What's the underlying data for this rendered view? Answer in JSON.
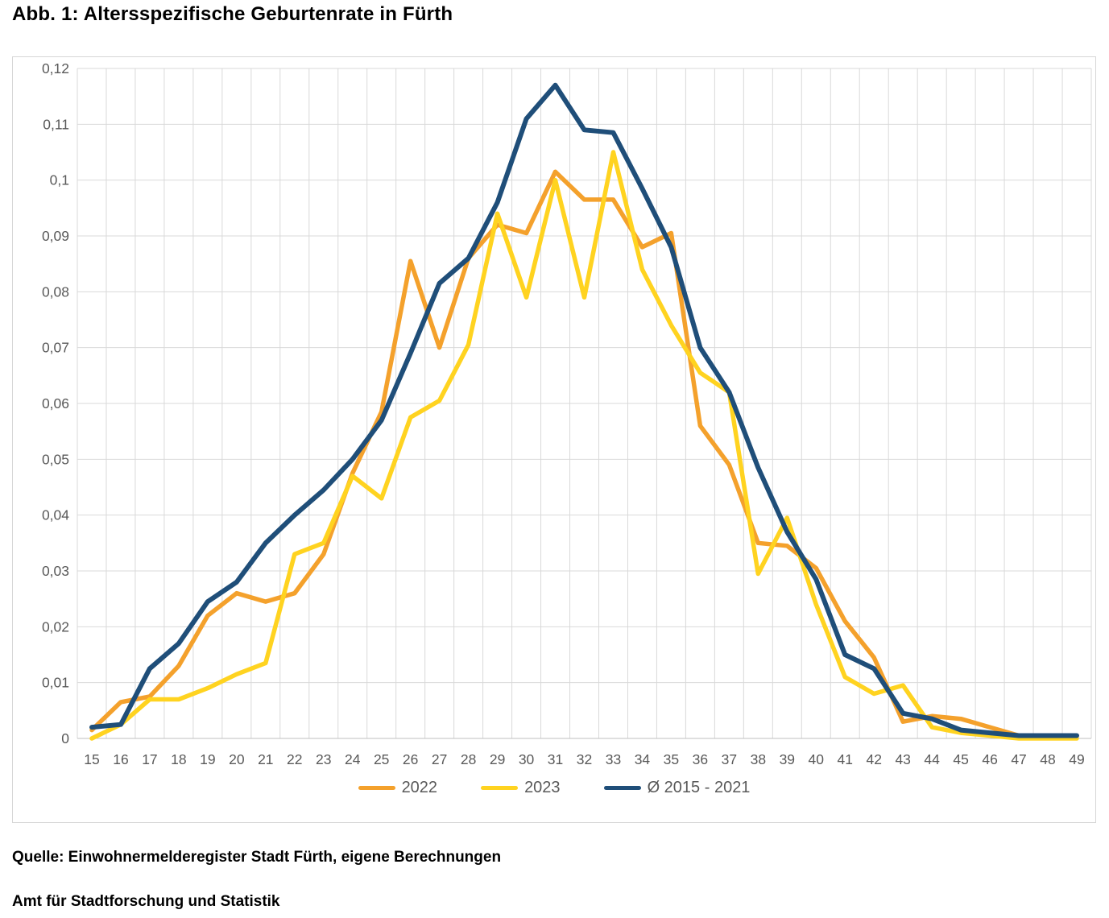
{
  "page": {
    "title": "Abb. 1: Altersspezifische Geburtenrate in Fürth",
    "source_line_1": "Quelle: Einwohnermelderegister Stadt Fürth, eigene Berechnungen",
    "source_line_2": "Amt für Stadtforschung und Statistik"
  },
  "chart_data": {
    "type": "line",
    "title": "Abb. 1: Altersspezifische Geburtenrate in Fürth",
    "xlabel": "",
    "ylabel": "",
    "x": [
      15,
      16,
      17,
      18,
      19,
      20,
      21,
      22,
      23,
      24,
      25,
      26,
      27,
      28,
      29,
      30,
      31,
      32,
      33,
      34,
      35,
      36,
      37,
      38,
      39,
      40,
      41,
      42,
      43,
      44,
      45,
      46,
      47,
      48,
      49
    ],
    "ylim": [
      0,
      0.12
    ],
    "y_tick_step": 0.01,
    "y_tick_labels": [
      "0",
      "0,01",
      "0,02",
      "0,03",
      "0,04",
      "0,05",
      "0,06",
      "0,07",
      "0,08",
      "0,09",
      "0,1",
      "0,11",
      "0,12"
    ],
    "grid": "both",
    "legend_position": "bottom",
    "colors": {
      "gridline": "#d9d9d9",
      "axis_line": "#bfbfbf",
      "tick_label": "#595959"
    },
    "series": [
      {
        "name": "2022",
        "color": "#F4A12C",
        "stroke_width": 5.5,
        "values": [
          0.0015,
          0.0065,
          0.0075,
          0.013,
          0.022,
          0.026,
          0.0245,
          0.026,
          0.033,
          0.0475,
          0.0585,
          0.0855,
          0.07,
          0.086,
          0.092,
          0.0905,
          0.1015,
          0.0965,
          0.0965,
          0.088,
          0.0905,
          0.056,
          0.049,
          0.035,
          0.0345,
          0.0305,
          0.021,
          0.0145,
          0.003,
          0.004,
          0.0035,
          0.002,
          0.0005,
          0.0005,
          0.0005
        ]
      },
      {
        "name": "2023",
        "color": "#FFD320",
        "stroke_width": 5.5,
        "values": [
          0.0,
          0.0025,
          0.007,
          0.007,
          0.009,
          0.0115,
          0.0135,
          0.033,
          0.035,
          0.047,
          0.043,
          0.0575,
          0.0605,
          0.0705,
          0.094,
          0.079,
          0.1,
          0.079,
          0.105,
          0.084,
          0.074,
          0.0655,
          0.062,
          0.0295,
          0.0395,
          0.024,
          0.011,
          0.008,
          0.0095,
          0.002,
          0.001,
          0.0005,
          0.0,
          0.0,
          0.0
        ]
      },
      {
        "name": "Ø 2015 - 2021",
        "color": "#1F4E79",
        "stroke_width": 6,
        "values": [
          0.002,
          0.0025,
          0.0125,
          0.017,
          0.0245,
          0.028,
          0.035,
          0.04,
          0.0445,
          0.05,
          0.057,
          0.069,
          0.0815,
          0.086,
          0.096,
          0.111,
          0.117,
          0.109,
          0.1085,
          0.0985,
          0.088,
          0.07,
          0.062,
          0.0485,
          0.037,
          0.0285,
          0.015,
          0.0125,
          0.0045,
          0.0035,
          0.0015,
          0.001,
          0.0005,
          0.0005,
          0.0005
        ]
      }
    ]
  }
}
